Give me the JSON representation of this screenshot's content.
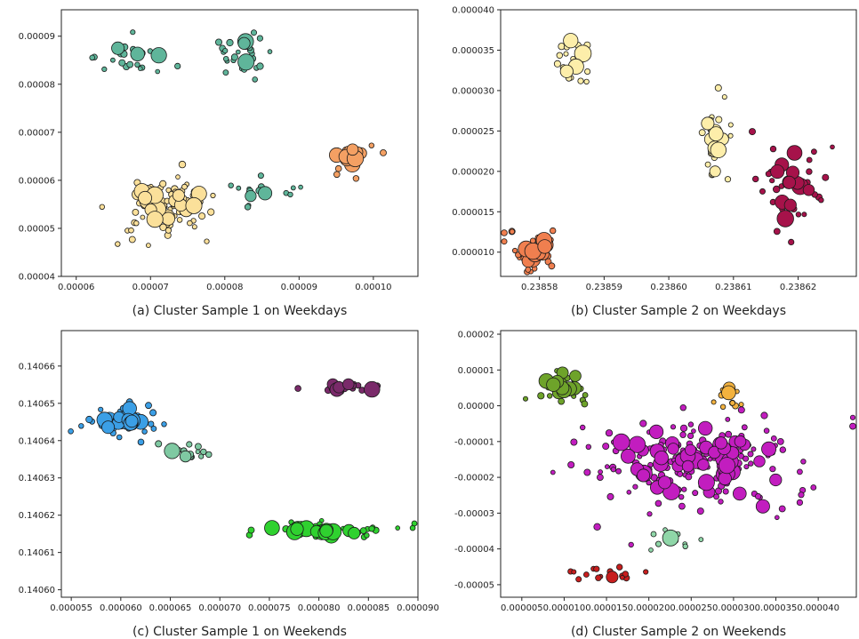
{
  "colors": {
    "teal": "#5fb59a",
    "yellow": "#fbe09a",
    "orange": "#f4a063",
    "light_yellow": "#fdeeaa",
    "coral": "#f07f4f",
    "crimson": "#a6124a",
    "blue": "#3b9fe6",
    "sea_green": "#7fc9a2",
    "plum": "#7a2a6a",
    "lime": "#2fd12f",
    "olive": "#6ea32a",
    "amber": "#f3b23e",
    "magenta": "#c21dbf",
    "mint": "#8fd6a8",
    "red": "#c81e1e"
  },
  "chart_data": [
    {
      "type": "scatter",
      "caption": "(a) Cluster Sample 1 on Weekdays",
      "xlim": [
        5.8e-05,
        0.000106
      ],
      "ylim": [
        4e-05,
        9.55e-05
      ],
      "xticks": [
        6e-05,
        7e-05,
        8e-05,
        9e-05,
        0.0001
      ],
      "xtick_labels": [
        "0.00006",
        "0.00007",
        "0.00008",
        "0.00009",
        "0.00010"
      ],
      "yticks": [
        4e-05,
        5e-05,
        6e-05,
        7e-05,
        8e-05,
        9e-05
      ],
      "ytick_labels": [
        "0.00004",
        "0.00005",
        "0.00006",
        "0.00007",
        "0.00008",
        "0.00009"
      ],
      "clusters": [
        {
          "color": "teal",
          "cx": 6.75e-05,
          "cy": 8.55e-05,
          "sx": 2.5e-06,
          "sy": 2e-06,
          "n": 26,
          "big": 3
        },
        {
          "color": "teal",
          "cx": 8.18e-05,
          "cy": 8.6e-05,
          "sx": 3e-06,
          "sy": 2.5e-06,
          "n": 28,
          "big": 3
        },
        {
          "color": "yellow",
          "cx": 7.2e-05,
          "cy": 5.5e-05,
          "sx": 3.5e-06,
          "sy": 3.5e-06,
          "n": 95,
          "big": 18
        },
        {
          "color": "teal",
          "cx": 8.45e-05,
          "cy": 5.75e-05,
          "sx": 2.5e-06,
          "sy": 1.5e-06,
          "n": 18,
          "big": 2
        },
        {
          "color": "orange",
          "cx": 9.65e-05,
          "cy": 6.5e-05,
          "sx": 1.8e-06,
          "sy": 2e-06,
          "n": 22,
          "big": 8
        }
      ]
    },
    {
      "type": "scatter",
      "caption": "(b) Cluster Sample 2 on Weekdays",
      "xlim": [
        0.238574,
        0.238629
      ],
      "ylim": [
        7e-06,
        4e-05
      ],
      "xticks": [
        0.23858,
        0.23859,
        0.2386,
        0.23861,
        0.23862
      ],
      "xtick_labels": [
        "0.23858",
        "0.23859",
        "0.23860",
        "0.23861",
        "0.23862"
      ],
      "yticks": [
        1e-05,
        1.5e-05,
        2e-05,
        2.5e-05,
        3e-05,
        3.5e-05,
        4e-05
      ],
      "ytick_labels": [
        "0.000010",
        "0.000015",
        "0.000020",
        "0.000025",
        "0.000030",
        "0.000035",
        "0.000040"
      ],
      "clusters": [
        {
          "color": "light_yellow",
          "cx": 0.238585,
          "cy": 3.35e-05,
          "sx": 1.5e-06,
          "sy": 2.2e-06,
          "n": 22,
          "big": 5
        },
        {
          "color": "light_yellow",
          "cx": 0.238607,
          "cy": 2.3e-05,
          "sx": 1e-06,
          "sy": 2.5e-06,
          "n": 32,
          "big": 10
        },
        {
          "color": "coral",
          "cx": 0.2385795,
          "cy": 1.02e-05,
          "sx": 2.2e-06,
          "sy": 1.5e-06,
          "n": 40,
          "big": 12
        },
        {
          "color": "crimson",
          "cx": 0.238619,
          "cy": 1.85e-05,
          "sx": 2.5e-06,
          "sy": 3.5e-06,
          "n": 48,
          "big": 12
        }
      ]
    },
    {
      "type": "scatter",
      "caption": "(c) Cluster Sample 1 on Weekends",
      "xlim": [
        5.4e-05,
        9e-05
      ],
      "ylim": [
        0.140598,
        0.1406695
      ],
      "xticks": [
        5.5e-05,
        6e-05,
        6.5e-05,
        7e-05,
        7.5e-05,
        8e-05,
        8.5e-05,
        9e-05
      ],
      "xtick_labels": [
        "0.000055",
        "0.000060",
        "0.000065",
        "0.000070",
        "0.000075",
        "0.000080",
        "0.000085",
        "0.000090"
      ],
      "yticks": [
        0.1406,
        0.14061,
        0.14062,
        0.14063,
        0.14064,
        0.14065,
        0.14066
      ],
      "ytick_labels": [
        "0.14060",
        "0.14061",
        "0.14062",
        "0.14063",
        "0.14064",
        "0.14065",
        "0.14066"
      ],
      "clusters": [
        {
          "color": "blue",
          "cx": 6.05e-05,
          "cy": 0.1406455,
          "sx": 2.2e-06,
          "sy": 2.5e-06,
          "n": 55,
          "big": 14
        },
        {
          "color": "sea_green",
          "cx": 6.65e-05,
          "cy": 0.1406365,
          "sx": 1.8e-06,
          "sy": 1.2e-06,
          "n": 14,
          "big": 2
        },
        {
          "color": "plum",
          "cx": 8.3e-05,
          "cy": 0.1406545,
          "sx": 2.2e-06,
          "sy": 8e-07,
          "n": 24,
          "big": 5
        },
        {
          "color": "lime",
          "cx": 8.05e-05,
          "cy": 0.140616,
          "sx": 3.5e-06,
          "sy": 1e-06,
          "n": 60,
          "big": 18
        }
      ]
    },
    {
      "type": "scatter",
      "caption": "(d) Cluster Sample 2 on Weekends",
      "xlim": [
        2.5e-06,
        4.45e-05
      ],
      "ylim": [
        -5.35e-05,
        2.1e-05
      ],
      "xticks": [
        5e-06,
        1e-05,
        1.5e-05,
        2e-05,
        2.5e-05,
        3e-05,
        3.5e-05,
        4e-05
      ],
      "xtick_labels": [
        "0.000005",
        "0.000010",
        "0.000015",
        "0.000020",
        "0.000025",
        "0.000030",
        "0.000035",
        "0.000040"
      ],
      "yticks": [
        -5e-05,
        -4e-05,
        -3e-05,
        -2e-05,
        -1e-05,
        0,
        1e-05,
        2e-05
      ],
      "ytick_labels": [
        "-0.00005",
        "-0.00004",
        "-0.00003",
        "-0.00002",
        "-0.00001",
        "0.00000",
        "0.00001",
        "0.00002"
      ],
      "clusters": [
        {
          "color": "olive",
          "cx": 9.5e-06,
          "cy": 5.5e-06,
          "sx": 2e-06,
          "sy": 2.5e-06,
          "n": 40,
          "big": 12
        },
        {
          "color": "amber",
          "cx": 2.95e-05,
          "cy": 3e-06,
          "sx": 8e-07,
          "sy": 2.2e-06,
          "n": 14,
          "big": 2
        },
        {
          "color": "magenta",
          "cx": 2.6e-05,
          "cy": -1.6e-05,
          "sx": 7.5e-06,
          "sy": 6.5e-06,
          "n": 220,
          "big": 55
        },
        {
          "color": "mint",
          "cx": 2.25e-05,
          "cy": -3.7e-05,
          "sx": 1.5e-06,
          "sy": 1.5e-06,
          "n": 14,
          "big": 1
        },
        {
          "color": "red",
          "cx": 1.55e-05,
          "cy": -4.7e-05,
          "sx": 2.5e-06,
          "sy": 1.5e-06,
          "n": 16,
          "big": 1
        }
      ]
    }
  ]
}
